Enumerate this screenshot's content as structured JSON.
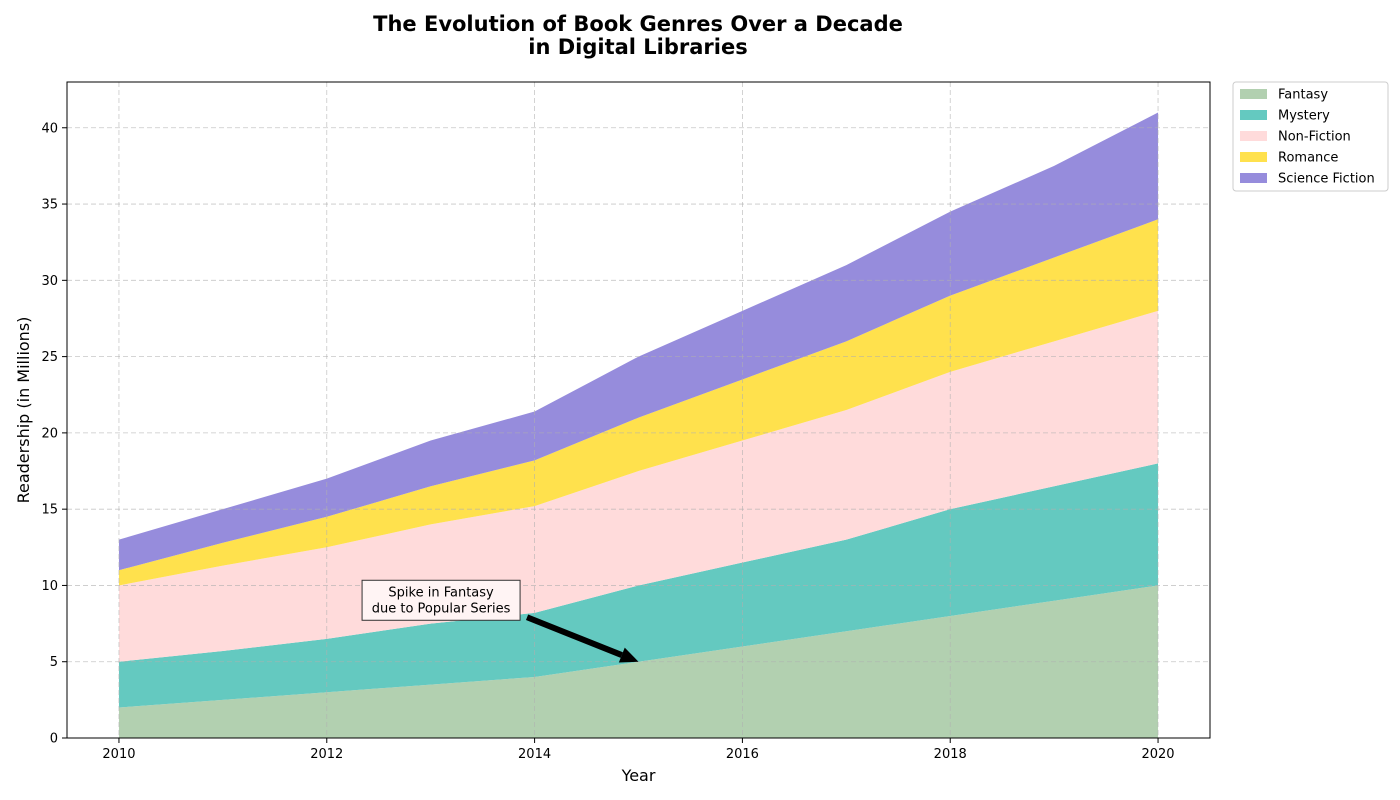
{
  "chart_data": {
    "type": "area",
    "stacked": true,
    "title": "The Evolution of Book Genres Over a Decade\nin Digital Libraries",
    "xlabel": "Year",
    "ylabel": "Readership (in Millions)",
    "x": [
      2010,
      2011,
      2012,
      2013,
      2014,
      2015,
      2016,
      2017,
      2018,
      2019,
      2020
    ],
    "xlim": [
      2009.5,
      2020.5
    ],
    "ylim": [
      0,
      43
    ],
    "xticks": [
      2010,
      2012,
      2014,
      2016,
      2018,
      2020
    ],
    "yticks": [
      0,
      5,
      10,
      15,
      20,
      25,
      30,
      35,
      40
    ],
    "grid": true,
    "legend_position": "outside-top-right",
    "series": [
      {
        "name": "Fantasy",
        "color": "#b2d0b0",
        "values": [
          2,
          2.5,
          3,
          3.5,
          4,
          5,
          6,
          7,
          8,
          9,
          10
        ]
      },
      {
        "name": "Mystery",
        "color": "#64c9c0",
        "values": [
          3,
          3.2,
          3.5,
          4,
          4.2,
          5,
          5.5,
          6,
          7,
          7.5,
          8
        ]
      },
      {
        "name": "Non-Fiction",
        "color": "#ffdbdb",
        "values": [
          5,
          5.6,
          6,
          6.5,
          7,
          7.5,
          8,
          8.5,
          9,
          9.5,
          10
        ]
      },
      {
        "name": "Romance",
        "color": "#ffe14d",
        "values": [
          1,
          1.5,
          2,
          2.5,
          3,
          3.5,
          4,
          4.5,
          5,
          5.5,
          6
        ]
      },
      {
        "name": "Science Fiction",
        "color": "#968cdc",
        "values": [
          2,
          2.2,
          2.5,
          3,
          3.2,
          4,
          4.5,
          5,
          5.5,
          6,
          7
        ]
      }
    ],
    "annotation": {
      "text": "Spike in Fantasy\ndue to Popular Series",
      "point": [
        2015,
        5
      ],
      "text_position": [
        2013.1,
        8.7
      ]
    }
  }
}
